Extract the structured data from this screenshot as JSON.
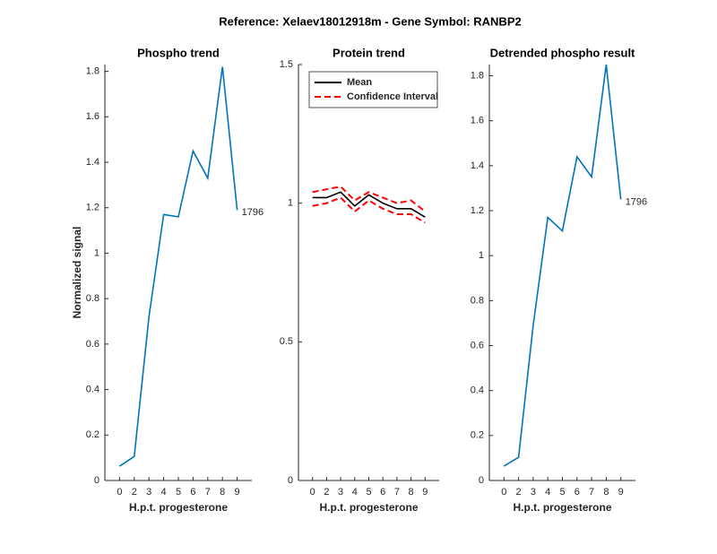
{
  "suptitle": "Reference:  Xelaev18012918m - Gene Symbol:  RANBP2",
  "chart_data": [
    {
      "type": "line",
      "title": "Phospho trend",
      "xlabel": "H.p.t. progesterone",
      "ylabel": "Normalized signal",
      "categories": [
        "0",
        "2",
        "3",
        "4",
        "5",
        "6",
        "7",
        "8",
        "9"
      ],
      "series": [
        {
          "name": "Phospho",
          "color": "#0072bd",
          "values": [
            0.063,
            0.106,
            0.72,
            1.17,
            1.16,
            1.45,
            1.33,
            1.82,
            1.19
          ]
        }
      ],
      "ylim": [
        0,
        1.83
      ],
      "yticks": [
        0,
        0.2,
        0.4,
        0.6,
        0.8,
        1,
        1.2,
        1.4,
        1.6,
        1.8
      ],
      "annotations": [
        {
          "text": "1796"
        }
      ]
    },
    {
      "type": "line",
      "title": "Protein trend",
      "xlabel": "H.p.t. progesterone",
      "categories": [
        "0",
        "2",
        "3",
        "4",
        "5",
        "6",
        "7",
        "8",
        "9"
      ],
      "series": [
        {
          "name": "Mean",
          "color": "#000000",
          "values": [
            1.02,
            1.02,
            1.04,
            0.99,
            1.03,
            1.0,
            0.98,
            0.98,
            0.95
          ]
        },
        {
          "name": "Confidence Interval",
          "color": "#ff0000",
          "dashed": true,
          "values": [
            1.04,
            1.05,
            1.06,
            1.01,
            1.04,
            1.02,
            1.0,
            1.01,
            0.97
          ]
        },
        {
          "color": "#ff0000",
          "dashed": true,
          "values": [
            0.99,
            1.0,
            1.02,
            0.97,
            1.01,
            0.98,
            0.96,
            0.96,
            0.93
          ]
        }
      ],
      "ylim": [
        0,
        1.5
      ],
      "yticks": [
        0,
        0.5,
        1,
        1.5
      ],
      "legend": "northeast"
    },
    {
      "type": "line",
      "title": "Detrended phospho result",
      "xlabel": "H.p.t. progesterone",
      "categories": [
        "0",
        "2",
        "3",
        "4",
        "5",
        "6",
        "7",
        "8",
        "9"
      ],
      "series": [
        {
          "name": "Detrended",
          "color": "#0072bd",
          "values": [
            0.064,
            0.103,
            0.69,
            1.17,
            1.11,
            1.44,
            1.35,
            1.85,
            1.25
          ]
        }
      ],
      "ylim": [
        0,
        1.85
      ],
      "yticks": [
        0,
        0.2,
        0.4,
        0.6,
        0.8,
        1,
        1.2,
        1.4,
        1.6,
        1.8
      ],
      "annotations": [
        {
          "text": "1796"
        }
      ]
    }
  ]
}
